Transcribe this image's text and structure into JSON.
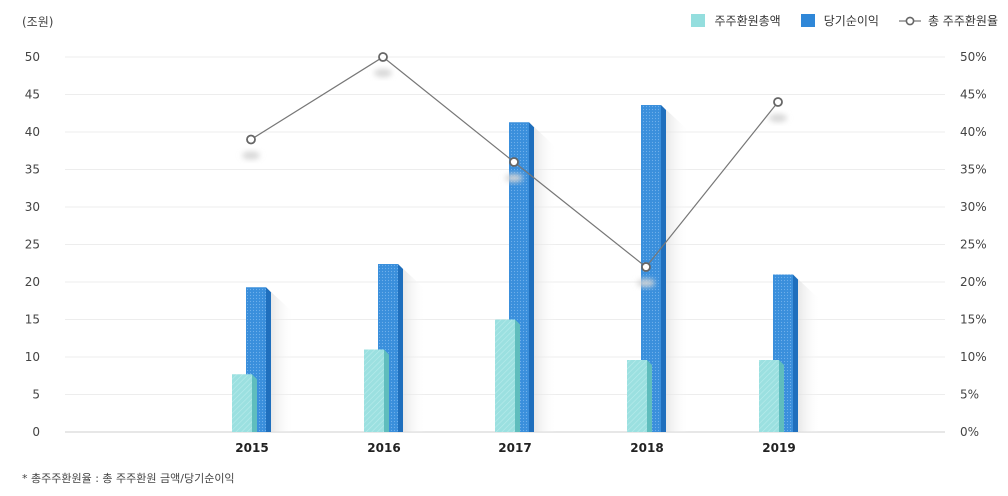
{
  "unit_label": "(조원)",
  "footnote": "*  총주주환원율 : 총 주주환원 금액/당기순이익",
  "legend": {
    "items": [
      {
        "label": "주주환원총액",
        "color": "#94dede",
        "marker": "square"
      },
      {
        "label": "당기순이익",
        "color": "#2f87d8",
        "marker": "square"
      },
      {
        "label": "총 주주환원율",
        "color": "#777777",
        "marker": "line-circle"
      }
    ]
  },
  "chart_data": {
    "type": "bar",
    "categories": [
      "2015",
      "2016",
      "2017",
      "2018",
      "2019"
    ],
    "series": [
      {
        "name": "주주환원총액",
        "values": [
          7.7,
          11.0,
          15.0,
          9.6,
          9.6
        ],
        "axis": "left",
        "color": "#94dede"
      },
      {
        "name": "당기순이익",
        "values": [
          19.3,
          22.4,
          41.3,
          43.6,
          21.0
        ],
        "axis": "left",
        "color": "#2f87d8"
      },
      {
        "name": "총 주주환원율",
        "type": "line",
        "values": [
          39,
          50,
          36,
          22,
          44
        ],
        "axis": "right",
        "color": "#777777"
      }
    ],
    "y_left": {
      "min": 0,
      "max": 50,
      "ticks": [
        "0",
        "5",
        "10",
        "15",
        "20",
        "25",
        "30",
        "35",
        "40",
        "45",
        "50"
      ]
    },
    "y_right": {
      "min": 0,
      "max": 50,
      "ticks": [
        "0%",
        "5%",
        "10%",
        "15%",
        "20%",
        "25%",
        "30%",
        "35%",
        "40%",
        "45%",
        "50%"
      ]
    },
    "grid": true
  }
}
